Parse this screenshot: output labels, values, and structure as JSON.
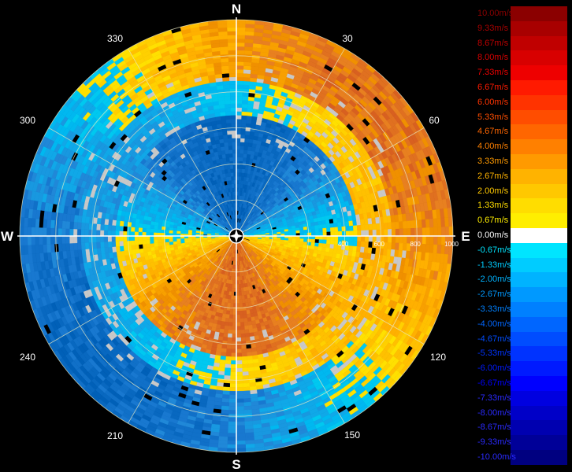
{
  "compass": {
    "north": "N",
    "south": "S",
    "east": "E",
    "west": "W"
  },
  "bearings": [
    "30",
    "60",
    "120",
    "150",
    "210",
    "240",
    "300",
    "330"
  ],
  "range_labels": [
    "400",
    "600",
    "800",
    "1000"
  ],
  "legend": {
    "unit": "m/s",
    "entries": [
      {
        "label": "10.00m/s",
        "color": "#8b0000"
      },
      {
        "label": "9.33m/s",
        "color": "#a80000"
      },
      {
        "label": "8.67m/s",
        "color": "#c00000"
      },
      {
        "label": "8.00m/s",
        "color": "#d80000"
      },
      {
        "label": "7.33m/s",
        "color": "#ee0000"
      },
      {
        "label": "6.67m/s",
        "color": "#ff1a00"
      },
      {
        "label": "6.00m/s",
        "color": "#ff3300"
      },
      {
        "label": "5.33m/s",
        "color": "#ff4d00"
      },
      {
        "label": "4.67m/s",
        "color": "#ff6600"
      },
      {
        "label": "4.00m/s",
        "color": "#ff8000"
      },
      {
        "label": "3.33m/s",
        "color": "#ff9a00"
      },
      {
        "label": "2.67m/s",
        "color": "#ffb300"
      },
      {
        "label": "2.00m/s",
        "color": "#ffc800"
      },
      {
        "label": "1.33m/s",
        "color": "#ffdd00"
      },
      {
        "label": "0.67m/s",
        "color": "#ffee00"
      },
      {
        "label": "0.00m/s",
        "color": "#ffffff"
      },
      {
        "label": "-0.67m/s",
        "color": "#00e5ff"
      },
      {
        "label": "-1.33m/s",
        "color": "#00ccff"
      },
      {
        "label": "-2.00m/s",
        "color": "#00b3ff"
      },
      {
        "label": "-2.67m/s",
        "color": "#0099ff"
      },
      {
        "label": "-3.33m/s",
        "color": "#0080ff"
      },
      {
        "label": "-4.00m/s",
        "color": "#0066ff"
      },
      {
        "label": "-4.67m/s",
        "color": "#004dff"
      },
      {
        "label": "-5.33m/s",
        "color": "#0033ff"
      },
      {
        "label": "-6.00m/s",
        "color": "#001aff"
      },
      {
        "label": "-6.67m/s",
        "color": "#0000ff"
      },
      {
        "label": "-7.33m/s",
        "color": "#0000e0"
      },
      {
        "label": "-8.00m/s",
        "color": "#0000c8"
      },
      {
        "label": "-8.67m/s",
        "color": "#0000b0"
      },
      {
        "label": "-9.33m/s",
        "color": "#000098"
      },
      {
        "label": "-10.00m/s",
        "color": "#000080"
      }
    ]
  },
  "colors": {
    "background": "#000000",
    "no_data": "#c8c8c8",
    "receding": "#e89020",
    "approaching": "#1e90d0"
  }
}
